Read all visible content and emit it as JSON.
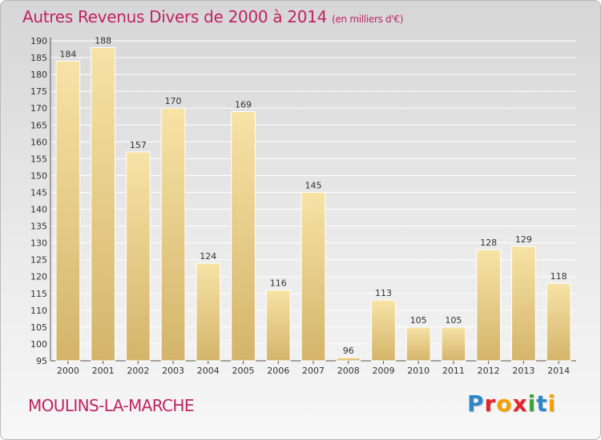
{
  "title": "Autres Revenus Divers de 2000 à 2014",
  "title_unit": "(en milliers d'€)",
  "commune": "MOULINS-LA-MARCHE",
  "logo": {
    "text": "Proxiti",
    "letters": [
      {
        "ch": "P",
        "color": "#2f86c6"
      },
      {
        "ch": "r",
        "color": "#e0262b"
      },
      {
        "ch": "o",
        "color": "#f5a000"
      },
      {
        "ch": "x",
        "color": "#e0262b"
      },
      {
        "ch": "i",
        "color": "#3aa53a"
      },
      {
        "ch": "t",
        "color": "#2f86c6"
      },
      {
        "ch": "i",
        "color": "#f5a000"
      }
    ]
  },
  "colors": {
    "title": "#c0245f",
    "bar_light": "#f7e3a6",
    "bar_dark": "#d4b46a",
    "grid": "#ffffff"
  },
  "chart_data": {
    "type": "bar",
    "title": "Autres Revenus Divers de 2000 à 2014",
    "xlabel": "",
    "ylabel": "",
    "categories": [
      "2000",
      "2001",
      "2002",
      "2003",
      "2004",
      "2005",
      "2006",
      "2007",
      "2008",
      "2009",
      "2010",
      "2011",
      "2012",
      "2013",
      "2014"
    ],
    "values": [
      184,
      188,
      157,
      170,
      124,
      169,
      116,
      145,
      96,
      113,
      105,
      105,
      128,
      129,
      118
    ],
    "ylim": [
      95,
      190
    ],
    "yticks": [
      95,
      100,
      105,
      110,
      115,
      120,
      125,
      130,
      135,
      140,
      145,
      150,
      155,
      160,
      165,
      170,
      175,
      180,
      185,
      190
    ],
    "grid": true,
    "data_labels": true
  }
}
